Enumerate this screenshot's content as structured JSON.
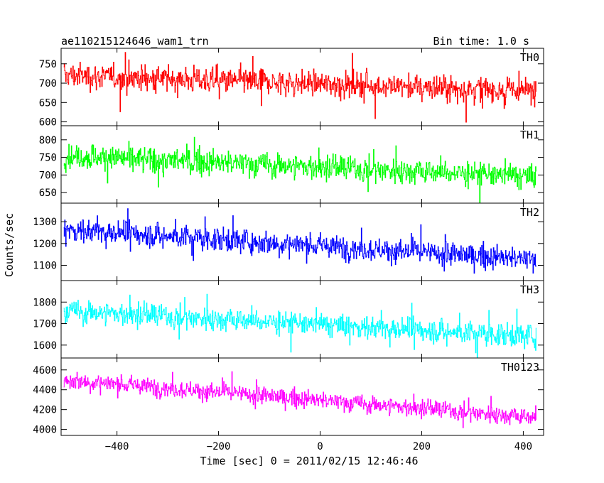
{
  "header": {
    "left_title": "ae110215124646_wam1_trn",
    "right_title": "Bin time: 1.0 s"
  },
  "chart_data": {
    "type": "line",
    "title": "ae110215124646_wam1_trn",
    "subtitle": "Bin time: 1.0 s",
    "xlabel": "Time [sec] 0 = 2011/02/15 12:46:46",
    "ylabel": "Counts/sec",
    "xlim": [
      -510,
      440
    ],
    "x_ticks": [
      -400,
      -200,
      0,
      200,
      400
    ],
    "x_range": [
      -505,
      425
    ],
    "x_step": 1,
    "panels": [
      {
        "name": "TH0",
        "color": "#ff0000",
        "ylim": [
          590,
          790
        ],
        "y_ticks": [
          600,
          650,
          700,
          750
        ],
        "start": 720,
        "end": 680,
        "noise": 28,
        "spike": 55
      },
      {
        "name": "TH1",
        "color": "#00ff00",
        "ylim": [
          620,
          840
        ],
        "y_ticks": [
          650,
          700,
          750,
          800
        ],
        "start": 755,
        "end": 695,
        "noise": 30,
        "spike": 55
      },
      {
        "name": "TH2",
        "color": "#0000ff",
        "ylim": [
          1030,
          1385
        ],
        "y_ticks": [
          1100,
          1200,
          1300
        ],
        "start": 1265,
        "end": 1125,
        "noise": 45,
        "spike": 80
      },
      {
        "name": "TH3",
        "color": "#00ffff",
        "ylim": [
          1540,
          1900
        ],
        "y_ticks": [
          1600,
          1700,
          1800
        ],
        "start": 1760,
        "end": 1640,
        "noise": 45,
        "spike": 90
      },
      {
        "name": "TH0123",
        "color": "#ff00ff",
        "ylim": [
          3940,
          4720
        ],
        "y_ticks": [
          4000,
          4200,
          4400,
          4600
        ],
        "start": 4500,
        "end": 4120,
        "noise": 75,
        "spike": 140
      }
    ]
  }
}
